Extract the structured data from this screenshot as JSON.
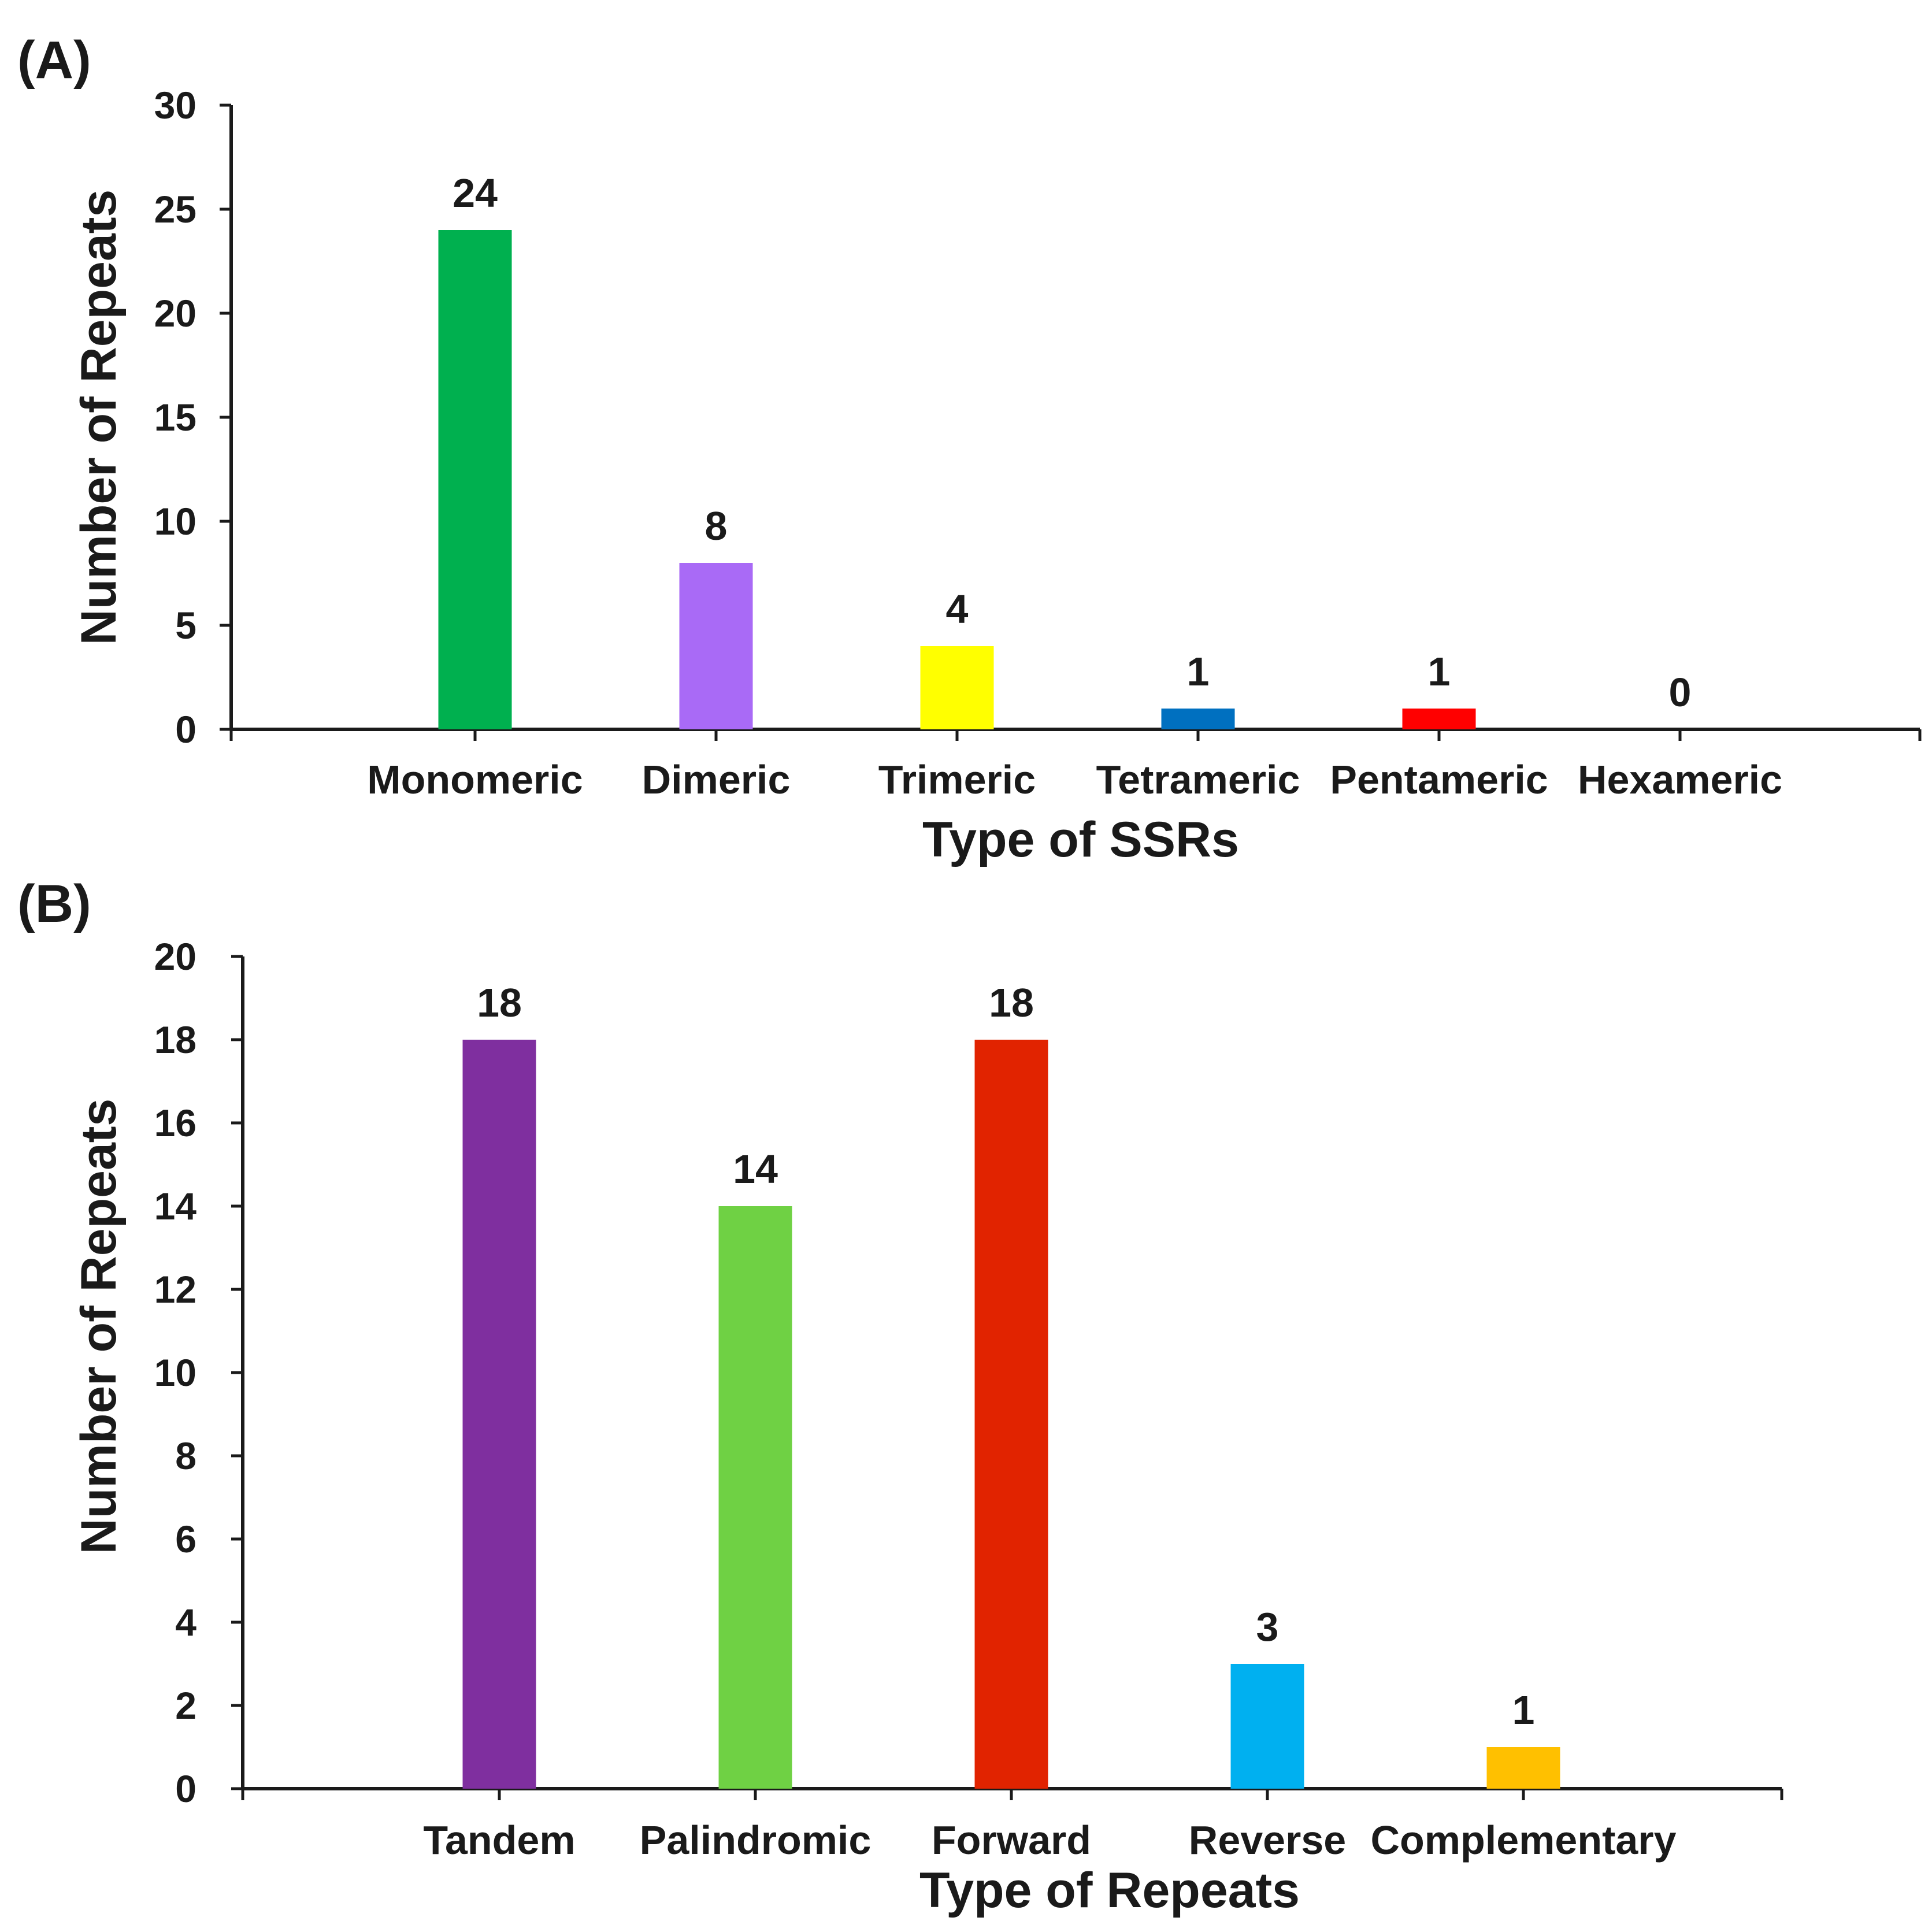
{
  "chart_data": [
    {
      "type": "bar",
      "panel_label": "(A)",
      "categories": [
        "Monomeric",
        "Dimeric",
        "Trimeric",
        "Tetrameric",
        "Pentameric",
        "Hexameric"
      ],
      "values": [
        24,
        8,
        4,
        1,
        1,
        0
      ],
      "data_labels": [
        "24",
        "8",
        "4",
        "1",
        "1",
        "0"
      ],
      "colors": [
        "#00b04f",
        "#a96af6",
        "#ffff00",
        "#0070c0",
        "#ff0000",
        "#7f7f7f"
      ],
      "xlabel": "Type of SSRs",
      "ylabel": "Number of Repeats",
      "ylim": [
        0,
        30
      ],
      "yticks": [
        0,
        5,
        10,
        15,
        20,
        25,
        30
      ],
      "grid": false,
      "legend": "none"
    },
    {
      "type": "bar",
      "panel_label": "(B)",
      "categories": [
        "Tandem",
        "Palindromic",
        "Forward",
        "Reverse",
        "Complementary"
      ],
      "values": [
        18,
        14,
        18,
        3,
        1
      ],
      "data_labels": [
        "18",
        "14",
        "18",
        "3",
        "1"
      ],
      "colors": [
        "#7f2f9f",
        "#6fd144",
        "#e12300",
        "#00b0f0",
        "#ffc000"
      ],
      "xlabel": "Type of Repeats",
      "ylabel": "Number of Repeats",
      "ylim": [
        0,
        20
      ],
      "yticks": [
        0,
        2,
        4,
        6,
        8,
        10,
        12,
        14,
        16,
        18,
        20
      ],
      "grid": false,
      "legend": "none"
    }
  ]
}
